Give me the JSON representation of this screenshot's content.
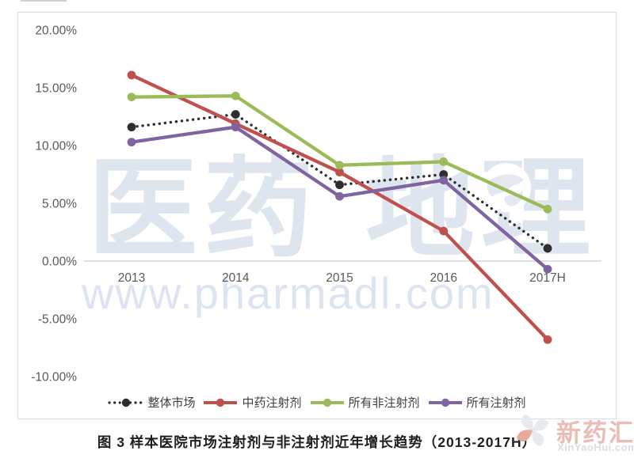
{
  "chart_data": {
    "type": "line",
    "title": "图 3  样本医院市场注射剂与非注射剂近年增长趋势（2013-2017H）",
    "xlabel": "",
    "ylabel": "",
    "categories": [
      "2013",
      "2014",
      "2015",
      "2016",
      "2017H"
    ],
    "series": [
      {
        "name": "整体市场",
        "color": "#2e2e2e",
        "line_style": "dotted",
        "marker": "circle",
        "values": [
          11.6,
          12.7,
          6.6,
          7.5,
          1.1
        ]
      },
      {
        "name": "中药注射剂",
        "color": "#c0504d",
        "line_style": "solid",
        "marker": "circle",
        "values": [
          16.1,
          11.9,
          7.7,
          2.6,
          -6.8
        ]
      },
      {
        "name": "所有非注射剂",
        "color": "#9bbb59",
        "line_style": "solid",
        "marker": "circle",
        "values": [
          14.2,
          14.3,
          8.3,
          8.6,
          4.5
        ]
      },
      {
        "name": "所有注射剂",
        "color": "#8064a2",
        "line_style": "solid",
        "marker": "circle",
        "values": [
          10.3,
          11.6,
          5.6,
          7.0,
          -0.7
        ]
      }
    ],
    "ylim": [
      -10,
      20
    ],
    "ytick_step": 5,
    "ytick_labels": [
      "20.00%",
      "15.00%",
      "10.00%",
      "5.00%",
      "0.00%",
      "-5.00%",
      "-10.00%"
    ],
    "grid": "zero-line-only",
    "legend_position": "bottom",
    "zero_line_color": "#c9cdd2",
    "tick_label_color": "#595959"
  },
  "watermark": {
    "brand_left": "医药",
    "brand_right": "地理",
    "url": "www.pharmadl.com",
    "color": "#dfe5ee"
  },
  "caption": {
    "text": "图 3  样本医院市场注射剂与非注射剂近年增长趋势（2013-2017H）"
  },
  "site_logo": {
    "name": "新药汇",
    "url": "XinYaoHui.com"
  }
}
